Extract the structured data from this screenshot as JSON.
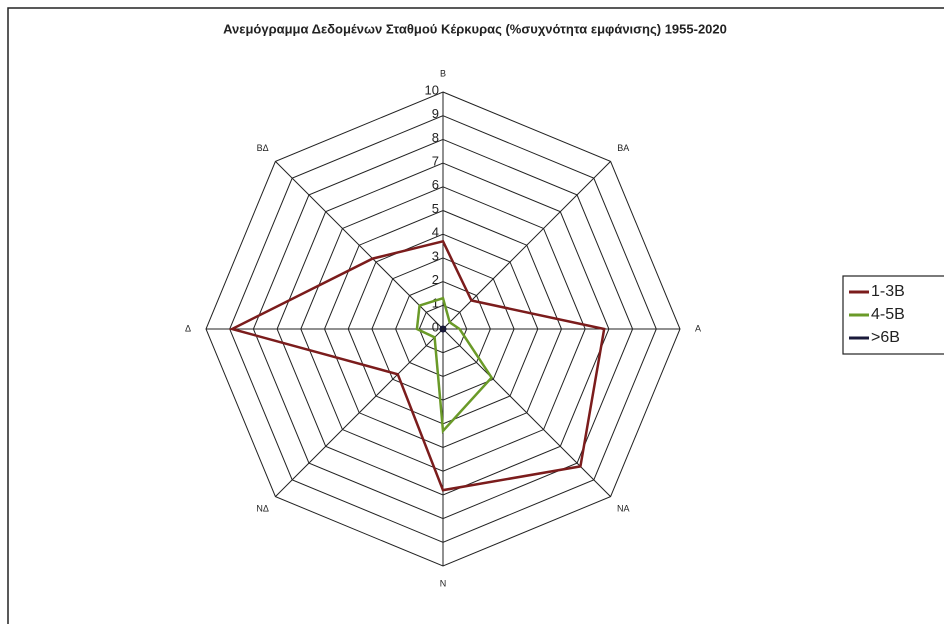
{
  "chart_data": {
    "type": "radar",
    "title": "Ανεμόγραμμα Δεδομένων Σταθμού Κέρκυρας (%συχνότητα εμφάνισης) 1955-2020",
    "categories": [
      "Β",
      "ΒΑ",
      "Α",
      "ΝΑ",
      "Ν",
      "ΝΔ",
      "Δ",
      "ΒΔ"
    ],
    "series": [
      {
        "name": "1-3B",
        "color": "#7b1c1c",
        "values": [
          3.7,
          1.7,
          6.8,
          8.2,
          6.8,
          2.7,
          8.9,
          4.2
        ]
      },
      {
        "name": "4-5B",
        "color": "#6a9a28",
        "values": [
          1.3,
          0.4,
          0.7,
          2.9,
          4.3,
          0.5,
          1.1,
          1.4
        ]
      },
      {
        "name": ">6B",
        "color": "#1a1a3a",
        "values": [
          0.1,
          0.1,
          0.1,
          0.1,
          0.1,
          0.1,
          0.1,
          0.1
        ]
      }
    ],
    "ylim": [
      0,
      10
    ],
    "yticks": [
      0,
      1,
      2,
      3,
      4,
      5,
      6,
      7,
      8,
      9,
      10
    ],
    "legend": "right"
  }
}
